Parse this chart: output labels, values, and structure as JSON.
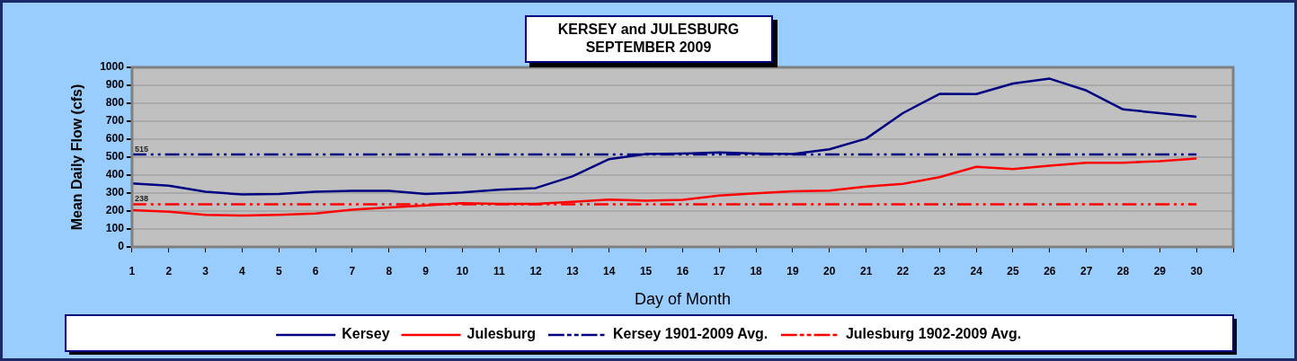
{
  "chart_data": {
    "type": "line",
    "title": "KERSEY and JULESBURG",
    "subtitle": "SEPTEMBER 2009",
    "xlabel": "Day of Month",
    "ylabel": "Mean Daily Flow (cfs)",
    "xlim": [
      1,
      31
    ],
    "xticks": [
      1,
      2,
      3,
      4,
      5,
      6,
      7,
      8,
      9,
      10,
      11,
      12,
      13,
      14,
      15,
      16,
      17,
      18,
      19,
      20,
      21,
      22,
      23,
      24,
      25,
      26,
      27,
      28,
      29,
      30,
      {
        "value": 31,
        "label": null
      }
    ],
    "ylim": [
      0,
      1000
    ],
    "yticks": [
      0,
      100,
      200,
      300,
      400,
      500,
      600,
      700,
      800,
      900,
      1000
    ],
    "grid": "y",
    "legend": "bottom",
    "marker": "none",
    "x": [
      1,
      2,
      3,
      4,
      5,
      6,
      7,
      8,
      9,
      10,
      11,
      12,
      13,
      14,
      15,
      16,
      17,
      18,
      19,
      20,
      21,
      22,
      23,
      24,
      25,
      26,
      27,
      28,
      29,
      30
    ],
    "series": [
      {
        "name": "Kersey",
        "color": "#000080",
        "line_style": "solid",
        "values": [
          354,
          341,
          308,
          292,
          295,
          308,
          312,
          312,
          295,
          304,
          319,
          328,
          393,
          489,
          517,
          520,
          526,
          520,
          517,
          544,
          603,
          745,
          852,
          851,
          910,
          937,
          871,
          766,
          745,
          725
        ]
      },
      {
        "name": "Julesburg",
        "color": "#ff0000",
        "line_style": "solid",
        "values": [
          205,
          196,
          179,
          175,
          179,
          186,
          208,
          220,
          231,
          244,
          240,
          240,
          251,
          264,
          258,
          262,
          286,
          299,
          310,
          314,
          336,
          351,
          389,
          446,
          434,
          452,
          469,
          469,
          478,
          493
        ]
      },
      {
        "name": "Kersey 1901-2009 Avg.",
        "color": "#000080",
        "line_style": "dashed",
        "values": [
          515,
          515,
          515,
          515,
          515,
          515,
          515,
          515,
          515,
          515,
          515,
          515,
          515,
          515,
          515,
          515,
          515,
          515,
          515,
          515,
          515,
          515,
          515,
          515,
          515,
          515,
          515,
          515,
          515,
          515
        ],
        "value_labels": [
          "515",
          null,
          null,
          null,
          null,
          null,
          null,
          null,
          null,
          null,
          null,
          null,
          null,
          null,
          null,
          null,
          null,
          null,
          null,
          null,
          null,
          null,
          null,
          null,
          null,
          null,
          null,
          null,
          null,
          null
        ]
      },
      {
        "name": "Julesburg 1902-2009 Avg.",
        "color": "#ff0000",
        "line_style": "dashed",
        "values": [
          238,
          238,
          238,
          238,
          238,
          238,
          238,
          238,
          238,
          238,
          238,
          238,
          238,
          238,
          238,
          238,
          238,
          238,
          238,
          238,
          238,
          238,
          238,
          238,
          238,
          238,
          238,
          238,
          238,
          238
        ],
        "value_labels": [
          "238",
          null,
          null,
          null,
          null,
          null,
          null,
          null,
          null,
          null,
          null,
          null,
          null,
          null,
          null,
          null,
          null,
          null,
          null,
          null,
          null,
          null,
          null,
          null,
          null,
          null,
          null,
          null,
          null,
          null
        ]
      }
    ]
  }
}
